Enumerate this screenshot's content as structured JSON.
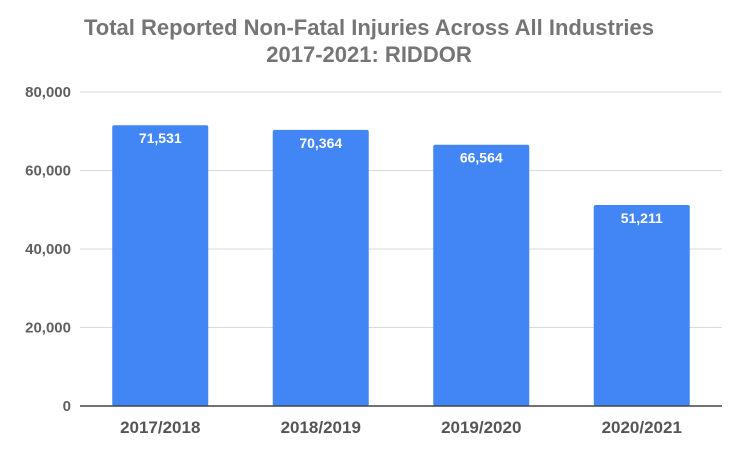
{
  "colors": {
    "bar": "#4285f4",
    "grid": "#d9d9d9",
    "axis": "#444444",
    "title": "#757575",
    "tick_text": "#5f5f5f",
    "data_label": "#ffffff",
    "background": "#ffffff"
  },
  "chart_data": {
    "type": "bar",
    "title_lines": [
      "Total Reported Non-Fatal Injuries Across All Industries",
      "2017-2021: RIDDOR"
    ],
    "categories": [
      "2017/2018",
      "2018/2019",
      "2019/2020",
      "2020/2021"
    ],
    "values": [
      71531,
      70364,
      66564,
      51211
    ],
    "data_labels": [
      "71,531",
      "70,364",
      "66,564",
      "51,211"
    ],
    "y_ticks": [
      0,
      20000,
      40000,
      60000,
      80000
    ],
    "y_tick_labels": [
      "0",
      "20,000",
      "40,000",
      "60,000",
      "80,000"
    ],
    "ylim": [
      0,
      80000
    ],
    "xlabel": "",
    "ylabel": "",
    "grid": true,
    "legend": "none"
  }
}
